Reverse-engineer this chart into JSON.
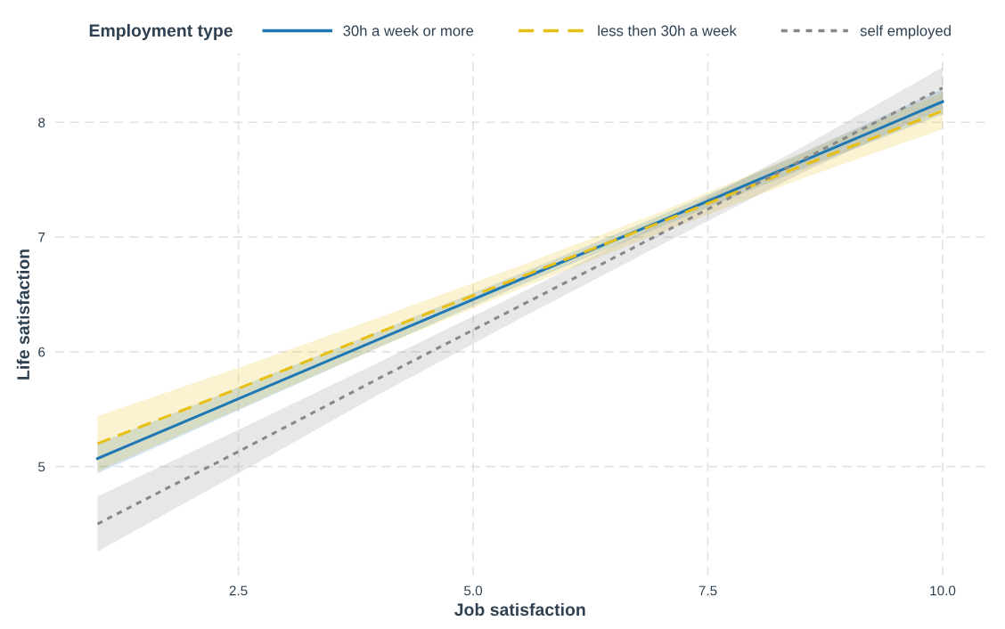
{
  "chart_data": {
    "type": "line",
    "xlabel": "Job satisfaction",
    "ylabel": "Life satisfaction",
    "legend_title": "Employment type",
    "legend": "top",
    "x": [
      1,
      2.5,
      4,
      5.5,
      7,
      8.5,
      10
    ],
    "xlim": [
      0.55,
      10.45
    ],
    "xticks": [
      {
        "value": 2.5,
        "label": "2.5"
      },
      {
        "value": 5,
        "label": "5.0"
      },
      {
        "value": 7.5,
        "label": "7.5"
      },
      {
        "value": 10,
        "label": "10.0"
      }
    ],
    "ylim": [
      4.05,
      8.6
    ],
    "yticks": [
      5,
      6,
      7,
      8
    ],
    "grid": true,
    "series": [
      {
        "name": "30h a week or more",
        "color": "#1f78b4",
        "line_style": "solid",
        "values": [
          5.07,
          5.59,
          6.11,
          6.63,
          7.14,
          7.66,
          8.18
        ],
        "lower": [
          4.94,
          5.49,
          6.04,
          6.58,
          7.09,
          7.59,
          8.07
        ],
        "upper": [
          5.2,
          5.69,
          6.18,
          6.68,
          7.19,
          7.73,
          8.29
        ]
      },
      {
        "name": "less then 30h a week",
        "color": "#e8bf14",
        "line_style": "dashed",
        "values": [
          5.2,
          5.68,
          6.17,
          6.65,
          7.13,
          7.62,
          8.1
        ],
        "lower": [
          4.96,
          5.5,
          6.04,
          6.55,
          7.04,
          7.51,
          7.94
        ],
        "upper": [
          5.44,
          5.86,
          6.3,
          6.75,
          7.22,
          7.73,
          8.26
        ]
      },
      {
        "name": "self employed",
        "color": "#888888",
        "line_style": "dotted",
        "values": [
          4.5,
          5.13,
          5.77,
          6.4,
          7.03,
          7.67,
          8.3
        ],
        "lower": [
          4.26,
          4.94,
          5.63,
          6.29,
          6.93,
          7.56,
          8.12
        ],
        "upper": [
          4.74,
          5.32,
          5.91,
          6.51,
          7.13,
          7.78,
          8.48
        ]
      }
    ]
  }
}
